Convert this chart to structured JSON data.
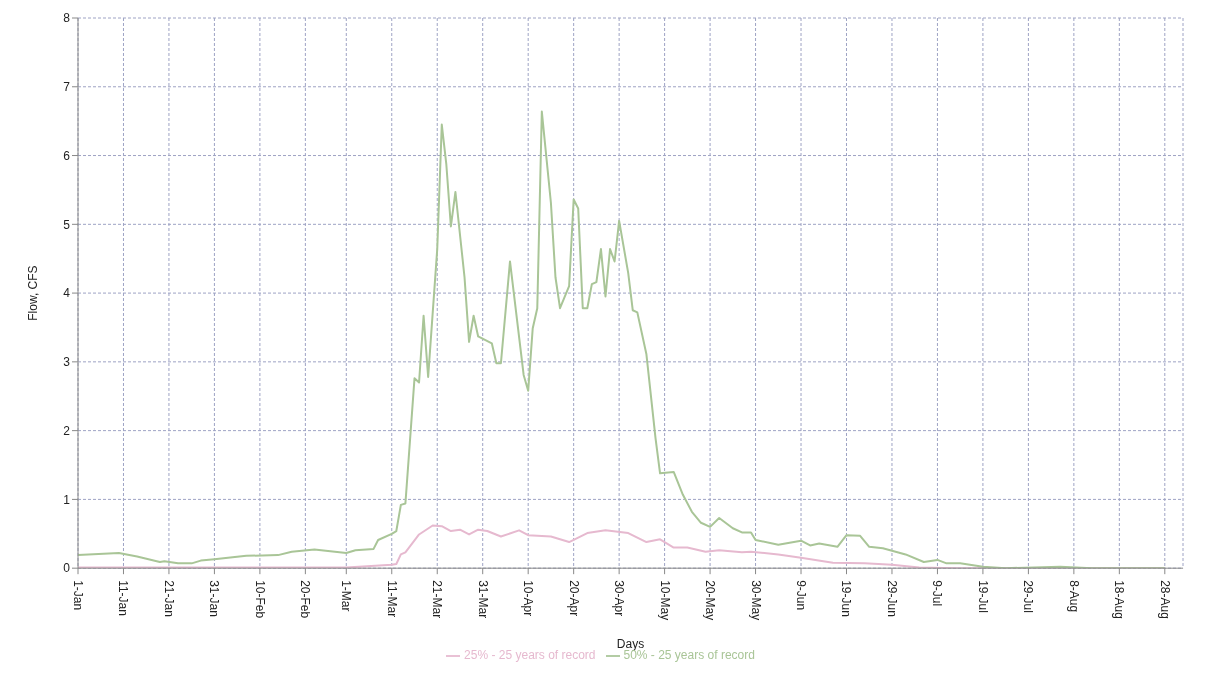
{
  "chart_data": {
    "type": "line",
    "xlabel": "Days",
    "ylabel": "Flow, CFS",
    "xlim": [
      "--01-01",
      "--09-01"
    ],
    "ylim": [
      0,
      8
    ],
    "yticks": [
      0,
      1,
      2,
      3,
      4,
      5,
      6,
      7,
      8
    ],
    "xticks": [
      {
        "value": "--01-01",
        "label": "1-Jan"
      },
      {
        "value": "--01-11",
        "label": "11-Jan"
      },
      {
        "value": "--01-21",
        "label": "21-Jan"
      },
      {
        "value": "--01-31",
        "label": "31-Jan"
      },
      {
        "value": "--02-10",
        "label": "10-Feb"
      },
      {
        "value": "--02-20",
        "label": "20-Feb"
      },
      {
        "value": "--03-01",
        "label": "1-Mar"
      },
      {
        "value": "--03-11",
        "label": "11-Mar"
      },
      {
        "value": "--03-21",
        "label": "21-Mar"
      },
      {
        "value": "--03-31",
        "label": "31-Mar"
      },
      {
        "value": "--04-10",
        "label": "10-Apr"
      },
      {
        "value": "--04-20",
        "label": "20-Apr"
      },
      {
        "value": "--04-30",
        "label": "30-Apr"
      },
      {
        "value": "--05-10",
        "label": "10-May"
      },
      {
        "value": "--05-20",
        "label": "20-May"
      },
      {
        "value": "--05-30",
        "label": "30-May"
      },
      {
        "value": "--06-09",
        "label": "9-Jun"
      },
      {
        "value": "--06-19",
        "label": "19-Jun"
      },
      {
        "value": "--06-29",
        "label": "29-Jun"
      },
      {
        "value": "--07-09",
        "label": "9-Jul"
      },
      {
        "value": "--07-19",
        "label": "19-Jul"
      },
      {
        "value": "--07-29",
        "label": "29-Jul"
      },
      {
        "value": "--08-08",
        "label": "8-Aug"
      },
      {
        "value": "--08-18",
        "label": "18-Aug"
      },
      {
        "value": "--08-28",
        "label": "28-Aug"
      }
    ],
    "grid": true,
    "legend": "bottom",
    "line_style": "solid",
    "series": [
      {
        "name": "25% - 25 years of record",
        "color": "#e6b9cf",
        "x": [
          "--01-01",
          "--02-01",
          "--03-01",
          "--03-11",
          "--03-12",
          "--03-13",
          "--03-14",
          "--03-17",
          "--03-20",
          "--03-22",
          "--03-24",
          "--03-26",
          "--03-28",
          "--03-30",
          "--04-01",
          "--04-04",
          "--04-08",
          "--04-10",
          "--04-15",
          "--04-19",
          "--04-23",
          "--04-27",
          "--05-02",
          "--05-06",
          "--05-09",
          "--05-12",
          "--05-15",
          "--05-19",
          "--05-22",
          "--05-27",
          "--05-29",
          "--06-04",
          "--06-09",
          "--06-16",
          "--06-23",
          "--06-29",
          "--07-05",
          "--07-13",
          "--08-28"
        ],
        "values": [
          0.01,
          0.01,
          0.01,
          0.05,
          0.06,
          0.2,
          0.23,
          0.49,
          0.62,
          0.61,
          0.54,
          0.56,
          0.49,
          0.56,
          0.54,
          0.46,
          0.55,
          0.48,
          0.46,
          0.38,
          0.51,
          0.55,
          0.51,
          0.38,
          0.42,
          0.3,
          0.3,
          0.24,
          0.26,
          0.23,
          0.24,
          0.2,
          0.15,
          0.08,
          0.07,
          0.05,
          0.01,
          0,
          0
        ]
      },
      {
        "name": "50% - 25 years of record",
        "color": "#a9c597",
        "x": [
          "--01-01",
          "--01-10",
          "--01-14",
          "--01-19",
          "--01-20",
          "--01-23",
          "--01-26",
          "--01-28",
          "--01-31",
          "--02-07",
          "--02-14",
          "--02-17",
          "--02-22",
          "--03-01",
          "--03-03",
          "--03-07",
          "--03-08",
          "--03-11",
          "--03-12",
          "--03-13",
          "--03-14",
          "--03-16",
          "--03-17",
          "--03-18",
          "--03-19",
          "--03-21",
          "--03-22",
          "--03-23",
          "--03-24",
          "--03-25",
          "--03-27",
          "--03-28",
          "--03-29",
          "--03-30",
          "--04-02",
          "--04-03",
          "--04-04",
          "--04-06",
          "--04-09",
          "--04-10",
          "--04-11",
          "--04-12",
          "--04-13",
          "--04-15",
          "--04-16",
          "--04-17",
          "--04-19",
          "--04-20",
          "--04-21",
          "--04-22",
          "--04-23",
          "--04-24",
          "--04-25",
          "--04-26",
          "--04-27",
          "--04-28",
          "--04-29",
          "--04-30",
          "--05-02",
          "--05-03",
          "--05-04",
          "--05-06",
          "--05-08",
          "--05-09",
          "--05-12",
          "--05-14",
          "--05-16",
          "--05-18",
          "--05-20",
          "--05-22",
          "--05-25",
          "--05-27",
          "--05-29",
          "--05-30",
          "--06-04",
          "--06-09",
          "--06-11",
          "--06-13",
          "--06-17",
          "--06-19",
          "--06-22",
          "--06-24",
          "--06-27",
          "--07-02",
          "--07-06",
          "--07-09",
          "--07-11",
          "--07-14",
          "--07-19",
          "--07-24",
          "--08-05",
          "--08-12",
          "--08-28"
        ],
        "values": [
          0.19,
          0.22,
          0.17,
          0.09,
          0.1,
          0.07,
          0.07,
          0.11,
          0.13,
          0.18,
          0.19,
          0.24,
          0.27,
          0.22,
          0.26,
          0.28,
          0.41,
          0.5,
          0.54,
          0.92,
          0.94,
          2.76,
          2.7,
          3.67,
          2.78,
          4.64,
          6.45,
          5.87,
          4.97,
          5.47,
          4.23,
          3.29,
          3.67,
          3.37,
          3.27,
          2.98,
          2.98,
          4.46,
          2.81,
          2.58,
          3.49,
          3.78,
          6.64,
          5.31,
          4.23,
          3.78,
          4.1,
          5.36,
          5.23,
          3.78,
          3.78,
          4.13,
          4.16,
          4.64,
          3.95,
          4.64,
          4.46,
          5.05,
          4.29,
          3.75,
          3.72,
          3.11,
          1.89,
          1.38,
          1.4,
          1.07,
          0.82,
          0.66,
          0.6,
          0.73,
          0.58,
          0.52,
          0.52,
          0.41,
          0.34,
          0.4,
          0.33,
          0.36,
          0.31,
          0.48,
          0.47,
          0.31,
          0.29,
          0.2,
          0.09,
          0.12,
          0.07,
          0.07,
          0.02,
          0,
          0.02,
          0,
          0
        ]
      }
    ]
  }
}
